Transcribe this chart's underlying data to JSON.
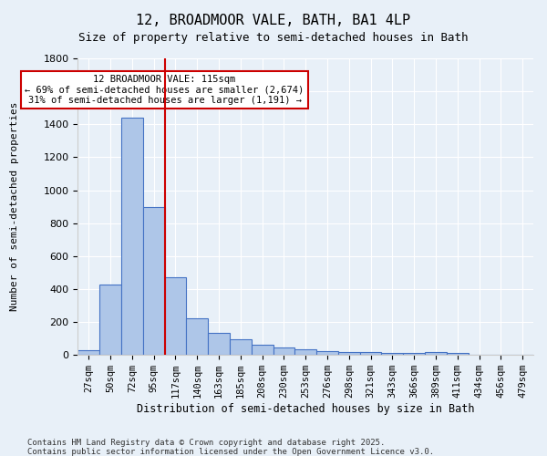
{
  "title": "12, BROADMOOR VALE, BATH, BA1 4LP",
  "subtitle": "Size of property relative to semi-detached houses in Bath",
  "xlabel": "Distribution of semi-detached houses by size in Bath",
  "ylabel": "Number of semi-detached properties",
  "bar_labels": [
    "27sqm",
    "50sqm",
    "72sqm",
    "95sqm",
    "117sqm",
    "140sqm",
    "163sqm",
    "185sqm",
    "208sqm",
    "230sqm",
    "253sqm",
    "276sqm",
    "298sqm",
    "321sqm",
    "343sqm",
    "366sqm",
    "389sqm",
    "411sqm",
    "434sqm",
    "456sqm",
    "479sqm"
  ],
  "bar_values": [
    30,
    425,
    1440,
    900,
    470,
    225,
    135,
    95,
    60,
    48,
    32,
    22,
    20,
    17,
    13,
    10,
    17,
    12,
    0,
    0,
    0
  ],
  "bar_color": "#aec6e8",
  "bar_edge_color": "#4472c4",
  "vline_x": 4,
  "vline_color": "#cc0000",
  "annotation_text": "12 BROADMOOR VALE: 115sqm\n← 69% of semi-detached houses are smaller (2,674)\n31% of semi-detached houses are larger (1,191) →",
  "annotation_box_color": "#ffffff",
  "annotation_box_edge": "#cc0000",
  "ylim": [
    0,
    1800
  ],
  "yticks": [
    0,
    200,
    400,
    600,
    800,
    1000,
    1200,
    1400,
    1600,
    1800
  ],
  "background_color": "#e8f0f8",
  "grid_color": "#ffffff",
  "footer1": "Contains HM Land Registry data © Crown copyright and database right 2025.",
  "footer2": "Contains public sector information licensed under the Open Government Licence v3.0."
}
